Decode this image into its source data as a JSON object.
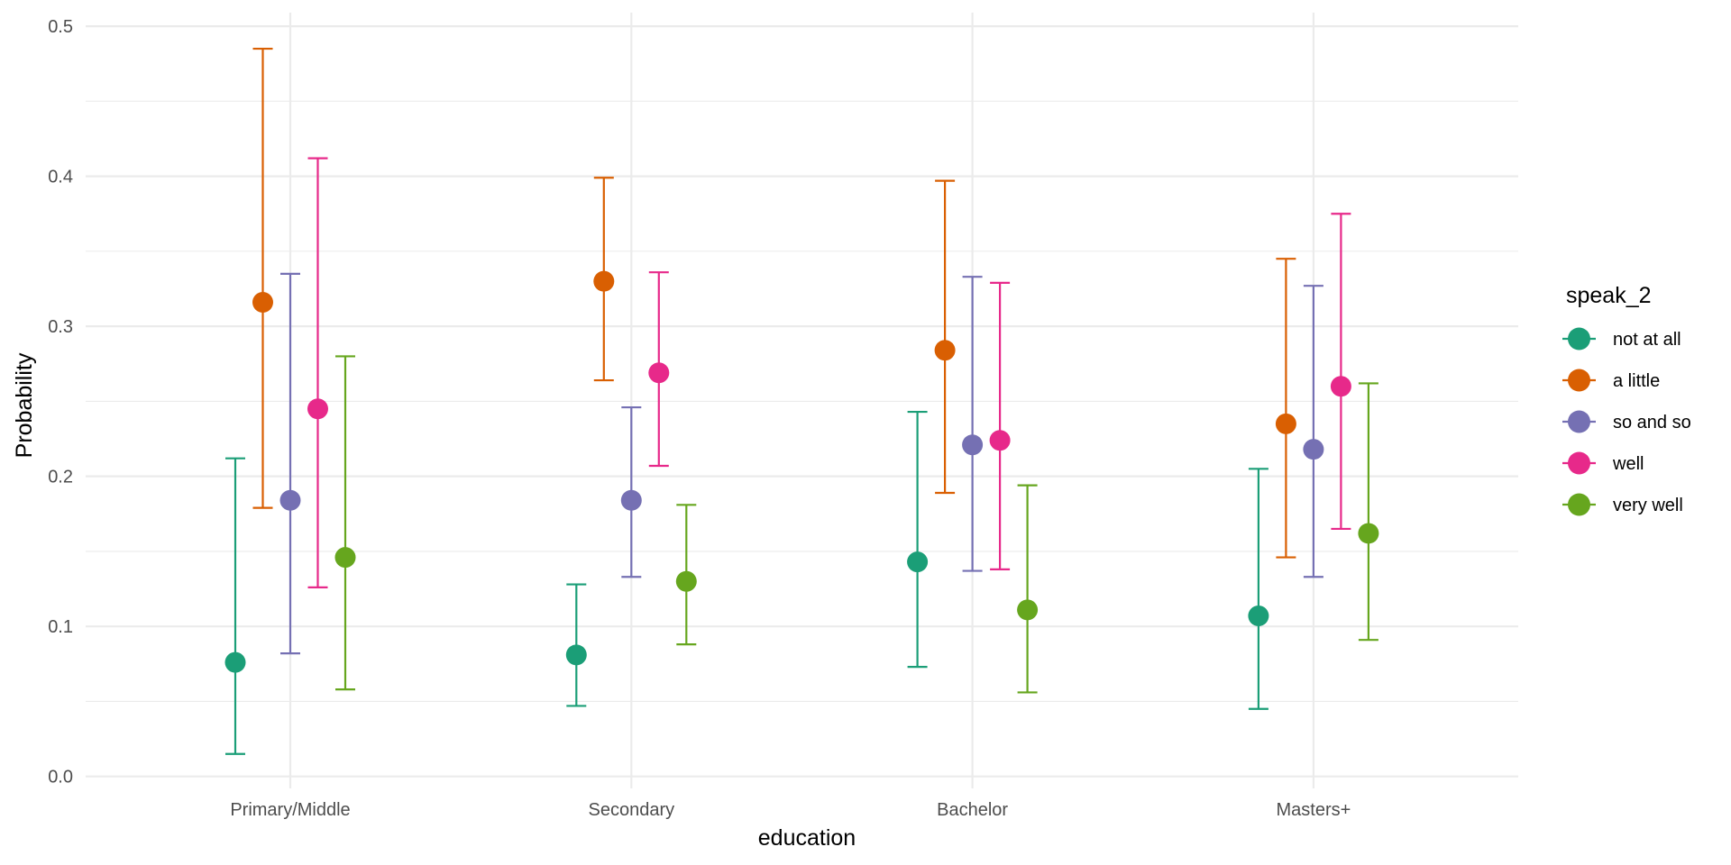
{
  "chart_data": {
    "type": "scatter",
    "subtype": "pointrange-errorbar",
    "title": "",
    "xlabel": "education",
    "ylabel": "Probability",
    "categories": [
      "Primary/Middle",
      "Secondary",
      "Bachelor",
      "Masters+"
    ],
    "ylim": [
      0,
      0.5
    ],
    "yticks": [
      0.0,
      0.1,
      0.2,
      0.3,
      0.4,
      0.5
    ],
    "ytick_labels": [
      "0.0",
      "0.1",
      "0.2",
      "0.3",
      "0.4",
      "0.5"
    ],
    "grid": true,
    "legend": {
      "title": "speak_2",
      "position": "right"
    },
    "series": [
      {
        "name": "not at all",
        "color": "#1B9E77",
        "values": [
          0.076,
          0.081,
          0.143,
          0.107
        ],
        "lower": [
          0.015,
          0.047,
          0.073,
          0.045
        ],
        "upper": [
          0.212,
          0.128,
          0.243,
          0.205
        ]
      },
      {
        "name": "a little",
        "color": "#D95F02",
        "values": [
          0.316,
          0.33,
          0.284,
          0.235
        ],
        "lower": [
          0.179,
          0.264,
          0.189,
          0.146
        ],
        "upper": [
          0.485,
          0.399,
          0.397,
          0.345
        ]
      },
      {
        "name": "so and so",
        "color": "#7570B3",
        "values": [
          0.184,
          0.184,
          0.221,
          0.218
        ],
        "lower": [
          0.082,
          0.133,
          0.137,
          0.133
        ],
        "upper": [
          0.335,
          0.246,
          0.333,
          0.327
        ]
      },
      {
        "name": "well",
        "color": "#E7298A",
        "values": [
          0.245,
          0.269,
          0.224,
          0.26
        ],
        "lower": [
          0.126,
          0.207,
          0.138,
          0.165
        ],
        "upper": [
          0.412,
          0.336,
          0.329,
          0.375
        ]
      },
      {
        "name": "very well",
        "color": "#66A61E",
        "values": [
          0.146,
          0.13,
          0.111,
          0.162
        ],
        "lower": [
          0.058,
          0.088,
          0.056,
          0.091
        ],
        "upper": [
          0.28,
          0.181,
          0.194,
          0.262
        ]
      }
    ]
  }
}
